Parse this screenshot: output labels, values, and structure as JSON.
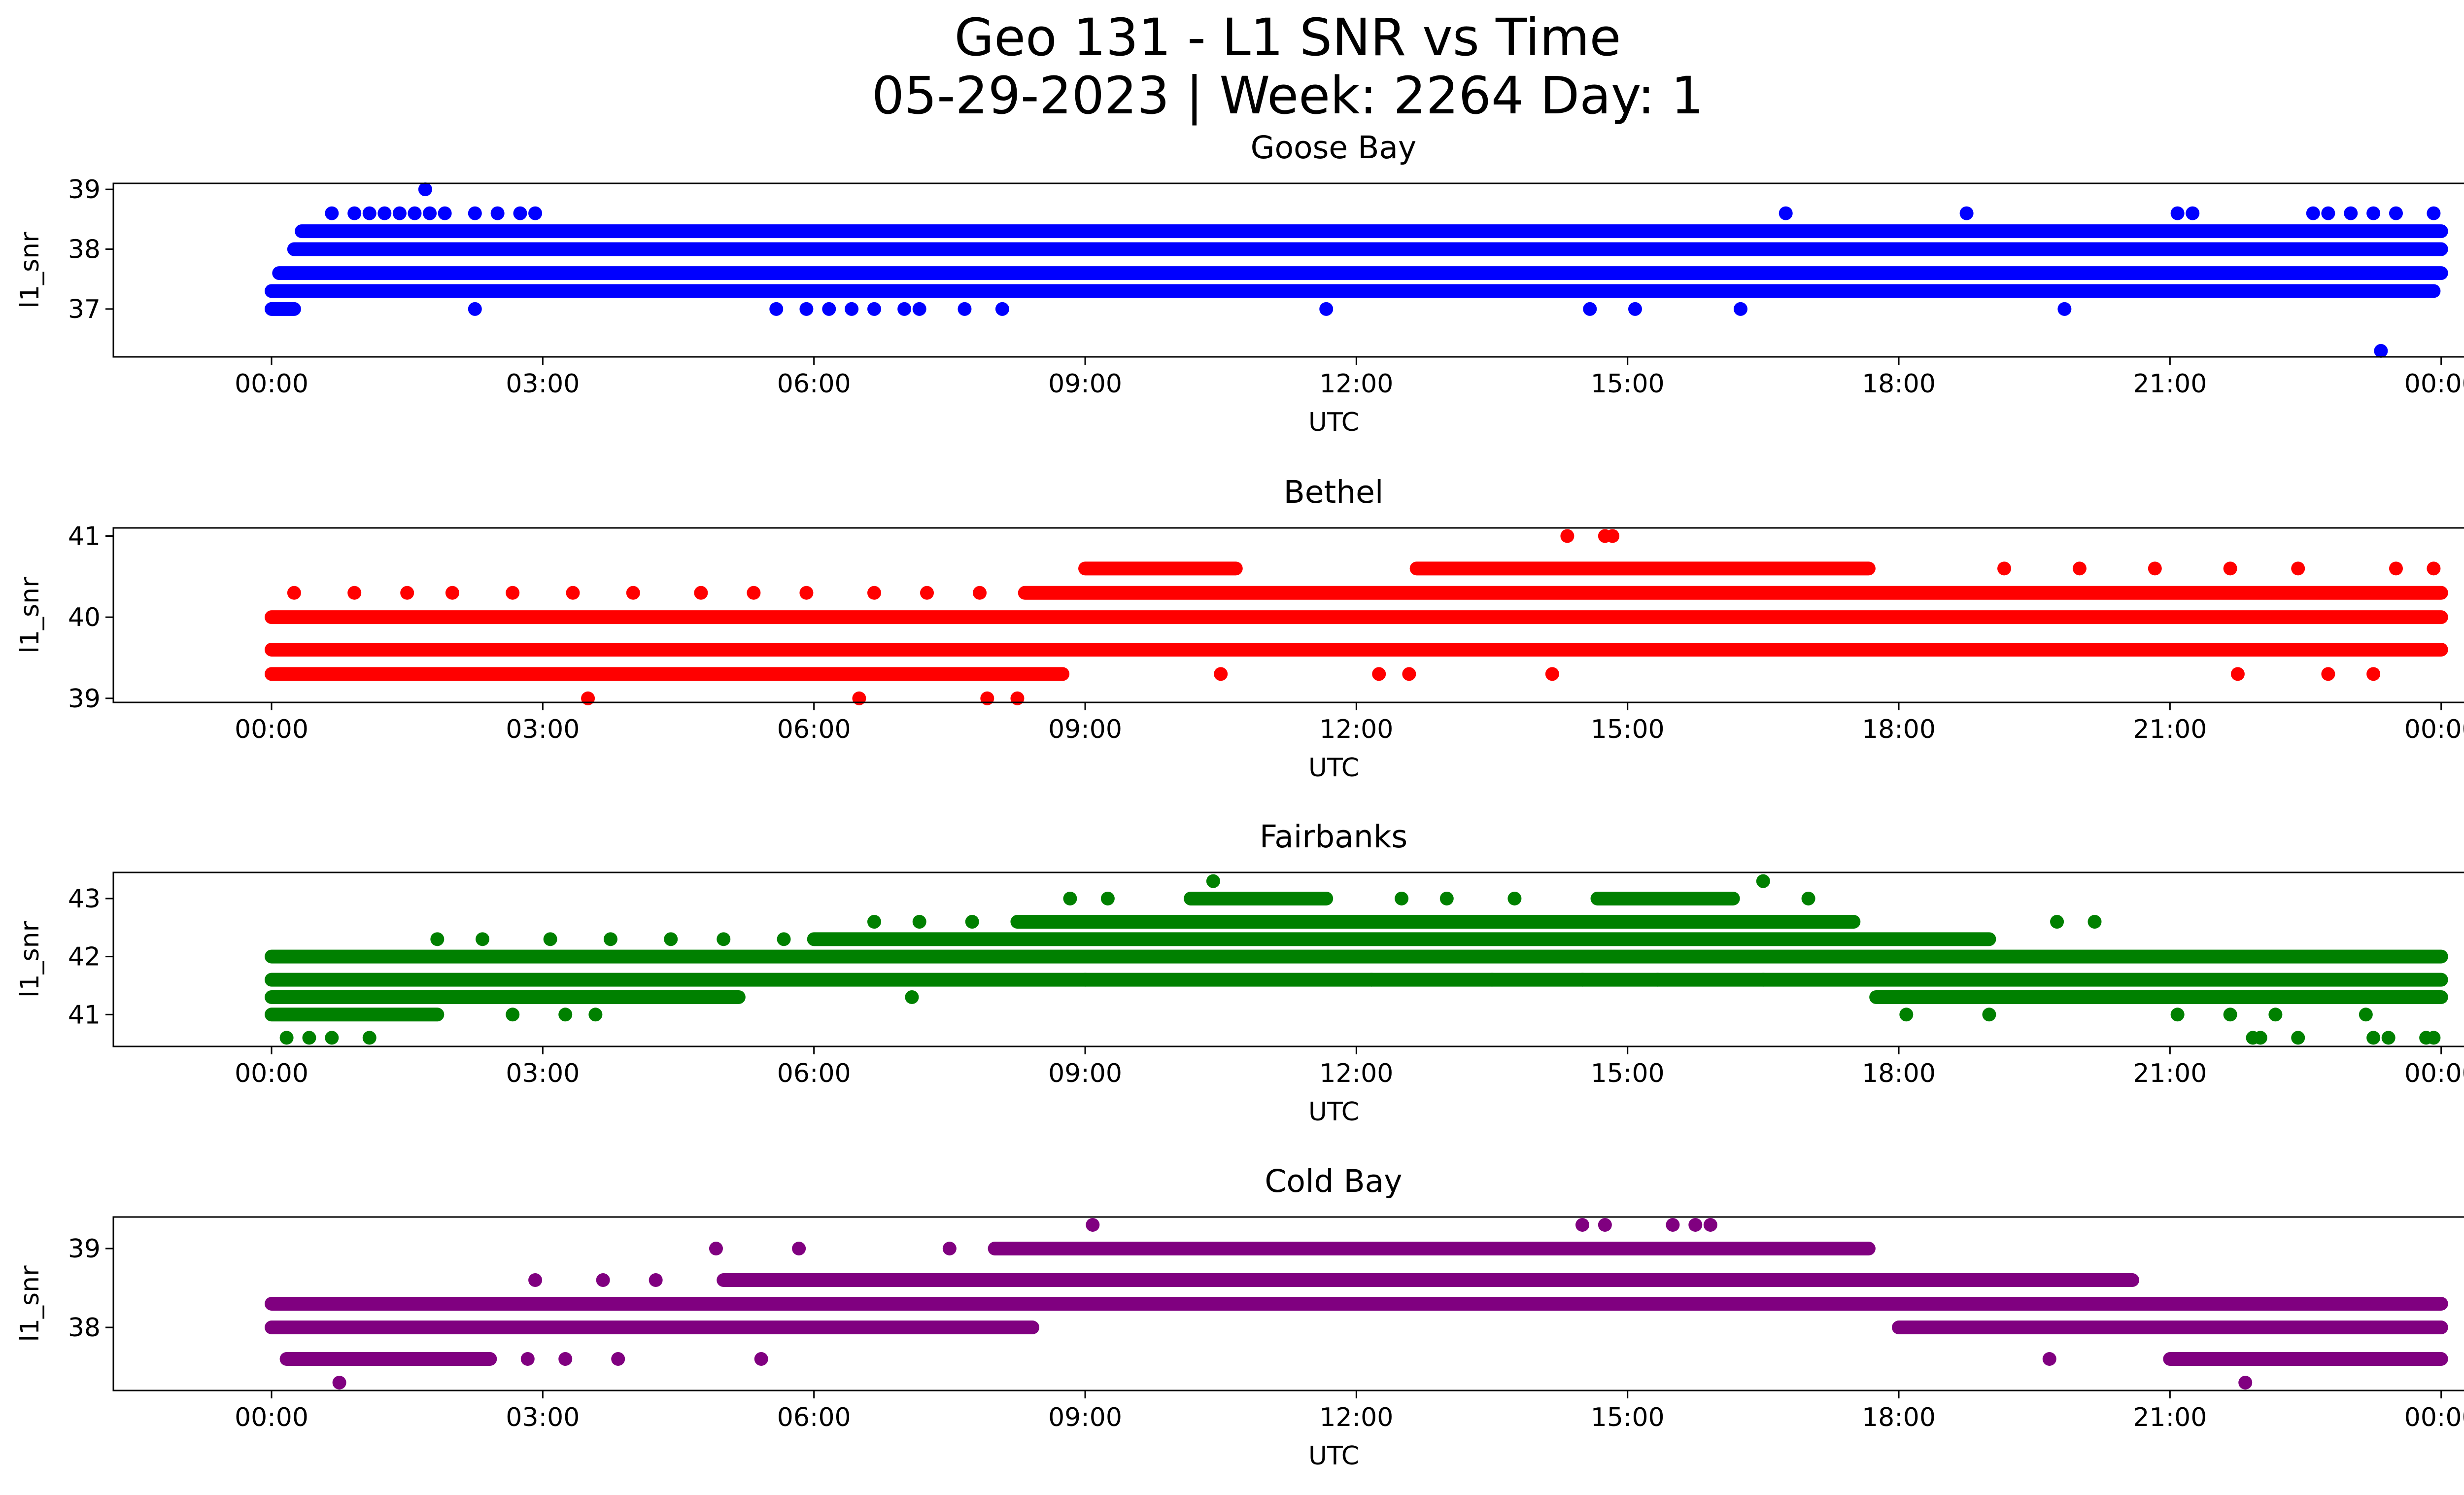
{
  "figure_title": {
    "line1": "Geo 131 - L1 SNR vs Time",
    "line2": "05-29-2023 | Week: 2264 Day: 1"
  },
  "chart_data": [
    {
      "type": "scatter",
      "title": "Goose Bay",
      "xlabel": "UTC",
      "ylabel": "l1_snr",
      "color": "#0000ff",
      "xlim": [
        "2023-05-28T22:15",
        "2023-05-30T01:15"
      ],
      "ylim": [
        36.2,
        39.1
      ],
      "xticks": [
        "00:00",
        "03:00",
        "06:00",
        "09:00",
        "12:00",
        "15:00",
        "18:00",
        "21:00",
        "00:00"
      ],
      "yticks": [
        37,
        38,
        39
      ],
      "levels": [
        37.0,
        37.3,
        37.6,
        38.0,
        38.3,
        38.6,
        39.0,
        36.3
      ],
      "bands": [
        {
          "y": 38.0,
          "from": "00:15",
          "to": "24:00"
        },
        {
          "y": 37.6,
          "from": "00:05",
          "to": "24:00"
        },
        {
          "y": 37.3,
          "from": "00:00",
          "to": "23:55"
        },
        {
          "y": 38.3,
          "from": "00:20",
          "to": "24:00"
        },
        {
          "y": 37.0,
          "from": "00:00",
          "to": "00:15"
        }
      ],
      "points": [
        {
          "t": "00:40",
          "y": 38.6
        },
        {
          "t": "00:55",
          "y": 38.6
        },
        {
          "t": "01:05",
          "y": 38.6
        },
        {
          "t": "01:15",
          "y": 38.6
        },
        {
          "t": "01:25",
          "y": 38.6
        },
        {
          "t": "01:35",
          "y": 38.6
        },
        {
          "t": "01:45",
          "y": 38.6
        },
        {
          "t": "01:55",
          "y": 38.6
        },
        {
          "t": "02:15",
          "y": 38.6
        },
        {
          "t": "02:30",
          "y": 38.6
        },
        {
          "t": "02:45",
          "y": 38.6
        },
        {
          "t": "02:55",
          "y": 38.6
        },
        {
          "t": "01:42",
          "y": 39.0
        },
        {
          "t": "02:15",
          "y": 37.0
        },
        {
          "t": "05:35",
          "y": 37.0
        },
        {
          "t": "05:55",
          "y": 37.0
        },
        {
          "t": "06:10",
          "y": 37.0
        },
        {
          "t": "06:25",
          "y": 37.0
        },
        {
          "t": "06:40",
          "y": 37.0
        },
        {
          "t": "07:00",
          "y": 37.0
        },
        {
          "t": "07:10",
          "y": 37.0
        },
        {
          "t": "07:40",
          "y": 37.0
        },
        {
          "t": "08:05",
          "y": 37.0
        },
        {
          "t": "11:40",
          "y": 37.0
        },
        {
          "t": "14:35",
          "y": 37.0
        },
        {
          "t": "15:05",
          "y": 37.0
        },
        {
          "t": "16:15",
          "y": 37.0
        },
        {
          "t": "19:50",
          "y": 37.0
        },
        {
          "t": "16:45",
          "y": 38.6
        },
        {
          "t": "18:45",
          "y": 38.6
        },
        {
          "t": "21:05",
          "y": 38.6
        },
        {
          "t": "21:15",
          "y": 38.6
        },
        {
          "t": "22:35",
          "y": 38.6
        },
        {
          "t": "22:45",
          "y": 38.6
        },
        {
          "t": "23:00",
          "y": 38.6
        },
        {
          "t": "23:15",
          "y": 38.6
        },
        {
          "t": "23:30",
          "y": 38.6
        },
        {
          "t": "23:55",
          "y": 38.6
        },
        {
          "t": "23:20",
          "y": 36.3
        }
      ]
    },
    {
      "type": "scatter",
      "title": "Bethel",
      "xlabel": "UTC",
      "ylabel": "l1_snr",
      "color": "#ff0000",
      "xlim": [
        "2023-05-28T22:15",
        "2023-05-30T01:15"
      ],
      "ylim": [
        38.95,
        41.1
      ],
      "xticks": [
        "00:00",
        "03:00",
        "06:00",
        "09:00",
        "12:00",
        "15:00",
        "18:00",
        "21:00",
        "00:00"
      ],
      "yticks": [
        39,
        40,
        41
      ],
      "levels": [
        39.0,
        39.3,
        39.6,
        40.0,
        40.3,
        40.6,
        41.0
      ],
      "bands": [
        {
          "y": 40.0,
          "from": "00:00",
          "to": "24:00"
        },
        {
          "y": 39.6,
          "from": "00:00",
          "to": "24:00"
        },
        {
          "y": 39.3,
          "from": "00:00",
          "to": "08:45"
        },
        {
          "y": 40.3,
          "from": "08:20",
          "to": "24:00"
        },
        {
          "y": 40.6,
          "from": "09:00",
          "to": "10:40"
        },
        {
          "y": 40.6,
          "from": "12:40",
          "to": "17:40"
        }
      ],
      "points": [
        {
          "t": "00:15",
          "y": 40.3
        },
        {
          "t": "00:55",
          "y": 40.3
        },
        {
          "t": "01:30",
          "y": 40.3
        },
        {
          "t": "02:00",
          "y": 40.3
        },
        {
          "t": "02:40",
          "y": 40.3
        },
        {
          "t": "03:20",
          "y": 40.3
        },
        {
          "t": "04:00",
          "y": 40.3
        },
        {
          "t": "04:45",
          "y": 40.3
        },
        {
          "t": "05:20",
          "y": 40.3
        },
        {
          "t": "05:55",
          "y": 40.3
        },
        {
          "t": "06:40",
          "y": 40.3
        },
        {
          "t": "07:15",
          "y": 40.3
        },
        {
          "t": "07:50",
          "y": 40.3
        },
        {
          "t": "03:30",
          "y": 39.0
        },
        {
          "t": "06:30",
          "y": 39.0
        },
        {
          "t": "07:55",
          "y": 39.0
        },
        {
          "t": "08:15",
          "y": 39.0
        },
        {
          "t": "14:20",
          "y": 41.0
        },
        {
          "t": "14:45",
          "y": 41.0
        },
        {
          "t": "14:50",
          "y": 41.0
        },
        {
          "t": "10:30",
          "y": 39.3
        },
        {
          "t": "12:15",
          "y": 39.3
        },
        {
          "t": "12:35",
          "y": 39.3
        },
        {
          "t": "14:10",
          "y": 39.3
        },
        {
          "t": "21:45",
          "y": 39.3
        },
        {
          "t": "22:45",
          "y": 39.3
        },
        {
          "t": "23:15",
          "y": 39.3
        },
        {
          "t": "19:10",
          "y": 40.6
        },
        {
          "t": "20:00",
          "y": 40.6
        },
        {
          "t": "20:50",
          "y": 40.6
        },
        {
          "t": "21:40",
          "y": 40.6
        },
        {
          "t": "22:25",
          "y": 40.6
        },
        {
          "t": "23:30",
          "y": 40.6
        },
        {
          "t": "23:55",
          "y": 40.6
        }
      ]
    },
    {
      "type": "scatter",
      "title": "Fairbanks",
      "xlabel": "UTC",
      "ylabel": "l1_snr",
      "color": "#008000",
      "xlim": [
        "2023-05-28T22:15",
        "2023-05-30T01:15"
      ],
      "ylim": [
        40.45,
        43.45
      ],
      "xticks": [
        "00:00",
        "03:00",
        "06:00",
        "09:00",
        "12:00",
        "15:00",
        "18:00",
        "21:00",
        "00:00"
      ],
      "yticks": [
        41,
        42,
        43
      ],
      "levels": [
        40.6,
        41.0,
        41.3,
        41.6,
        42.0,
        42.3,
        42.6,
        43.0,
        43.3
      ],
      "bands": [
        {
          "y": 41.6,
          "from": "00:00",
          "to": "24:00"
        },
        {
          "y": 41.3,
          "from": "00:00",
          "to": "05:10"
        },
        {
          "y": 41.3,
          "from": "17:45",
          "to": "24:00"
        },
        {
          "y": 42.0,
          "from": "00:00",
          "to": "24:00"
        },
        {
          "y": 41.0,
          "from": "00:00",
          "to": "01:50"
        },
        {
          "y": 42.3,
          "from": "06:00",
          "to": "19:00"
        },
        {
          "y": 42.6,
          "from": "08:15",
          "to": "17:30"
        },
        {
          "y": 43.0,
          "from": "10:10",
          "to": "11:40"
        },
        {
          "y": 43.0,
          "from": "14:40",
          "to": "16:10"
        }
      ],
      "points": [
        {
          "t": "00:10",
          "y": 40.6
        },
        {
          "t": "00:25",
          "y": 40.6
        },
        {
          "t": "00:40",
          "y": 40.6
        },
        {
          "t": "01:05",
          "y": 40.6
        },
        {
          "t": "21:55",
          "y": 40.6
        },
        {
          "t": "22:00",
          "y": 40.6
        },
        {
          "t": "22:25",
          "y": 40.6
        },
        {
          "t": "23:15",
          "y": 40.6
        },
        {
          "t": "23:25",
          "y": 40.6
        },
        {
          "t": "23:50",
          "y": 40.6
        },
        {
          "t": "23:55",
          "y": 40.6
        },
        {
          "t": "01:50",
          "y": 42.3
        },
        {
          "t": "02:20",
          "y": 42.3
        },
        {
          "t": "03:05",
          "y": 42.3
        },
        {
          "t": "03:45",
          "y": 42.3
        },
        {
          "t": "04:25",
          "y": 42.3
        },
        {
          "t": "05:00",
          "y": 42.3
        },
        {
          "t": "05:40",
          "y": 42.3
        },
        {
          "t": "06:40",
          "y": 42.6
        },
        {
          "t": "07:10",
          "y": 42.6
        },
        {
          "t": "07:45",
          "y": 42.6
        },
        {
          "t": "08:50",
          "y": 43.0
        },
        {
          "t": "09:15",
          "y": 43.0
        },
        {
          "t": "12:30",
          "y": 43.0
        },
        {
          "t": "13:00",
          "y": 43.0
        },
        {
          "t": "13:45",
          "y": 43.0
        },
        {
          "t": "17:00",
          "y": 43.0
        },
        {
          "t": "10:25",
          "y": 43.3
        },
        {
          "t": "16:30",
          "y": 43.3
        },
        {
          "t": "07:05",
          "y": 41.3
        },
        {
          "t": "09:00",
          "y": 41.6
        },
        {
          "t": "12:10",
          "y": 41.6
        },
        {
          "t": "13:30",
          "y": 41.6
        },
        {
          "t": "14:30",
          "y": 41.6
        },
        {
          "t": "15:20",
          "y": 41.6
        },
        {
          "t": "16:30",
          "y": 41.6
        },
        {
          "t": "19:45",
          "y": 42.6
        },
        {
          "t": "20:10",
          "y": 42.6
        },
        {
          "t": "02:40",
          "y": 41.0
        },
        {
          "t": "03:15",
          "y": 41.0
        },
        {
          "t": "03:35",
          "y": 41.0
        },
        {
          "t": "18:05",
          "y": 41.0
        },
        {
          "t": "19:00",
          "y": 41.0
        },
        {
          "t": "21:05",
          "y": 41.0
        },
        {
          "t": "21:40",
          "y": 41.0
        },
        {
          "t": "22:10",
          "y": 41.0
        },
        {
          "t": "23:10",
          "y": 41.0
        }
      ]
    },
    {
      "type": "scatter",
      "title": "Cold Bay",
      "xlabel": "UTC",
      "ylabel": "l1_snr",
      "color": "#800080",
      "xlim": [
        "2023-05-28T22:15",
        "2023-05-30T01:15"
      ],
      "ylim": [
        37.2,
        39.4
      ],
      "xticks": [
        "00:00",
        "03:00",
        "06:00",
        "09:00",
        "12:00",
        "15:00",
        "18:00",
        "21:00",
        "00:00"
      ],
      "yticks": [
        38,
        39
      ],
      "levels": [
        37.3,
        37.6,
        38.0,
        38.3,
        38.6,
        39.0,
        39.3
      ],
      "bands": [
        {
          "y": 38.0,
          "from": "00:00",
          "to": "08:25"
        },
        {
          "y": 38.0,
          "from": "18:00",
          "to": "24:00"
        },
        {
          "y": 38.3,
          "from": "00:00",
          "to": "24:00"
        },
        {
          "y": 37.6,
          "from": "00:10",
          "to": "02:25"
        },
        {
          "y": 37.6,
          "from": "21:00",
          "to": "24:00"
        },
        {
          "y": 38.6,
          "from": "05:00",
          "to": "20:35"
        },
        {
          "y": 39.0,
          "from": "08:00",
          "to": "17:40"
        }
      ],
      "points": [
        {
          "t": "00:45",
          "y": 37.3
        },
        {
          "t": "21:50",
          "y": 37.3
        },
        {
          "t": "02:50",
          "y": 37.6
        },
        {
          "t": "03:15",
          "y": 37.6
        },
        {
          "t": "03:50",
          "y": 37.6
        },
        {
          "t": "05:25",
          "y": 37.6
        },
        {
          "t": "19:40",
          "y": 37.6
        },
        {
          "t": "02:55",
          "y": 38.6
        },
        {
          "t": "03:40",
          "y": 38.6
        },
        {
          "t": "04:15",
          "y": 38.6
        },
        {
          "t": "04:55",
          "y": 39.0
        },
        {
          "t": "05:50",
          "y": 39.0
        },
        {
          "t": "07:30",
          "y": 39.0
        },
        {
          "t": "09:05",
          "y": 39.3
        },
        {
          "t": "14:30",
          "y": 39.3
        },
        {
          "t": "14:45",
          "y": 39.3
        },
        {
          "t": "15:30",
          "y": 39.3
        },
        {
          "t": "15:45",
          "y": 39.3
        },
        {
          "t": "15:55",
          "y": 39.3
        },
        {
          "t": "14:25",
          "y": 38.3
        },
        {
          "t": "15:40",
          "y": 38.3
        },
        {
          "t": "16:20",
          "y": 38.3
        }
      ]
    }
  ]
}
